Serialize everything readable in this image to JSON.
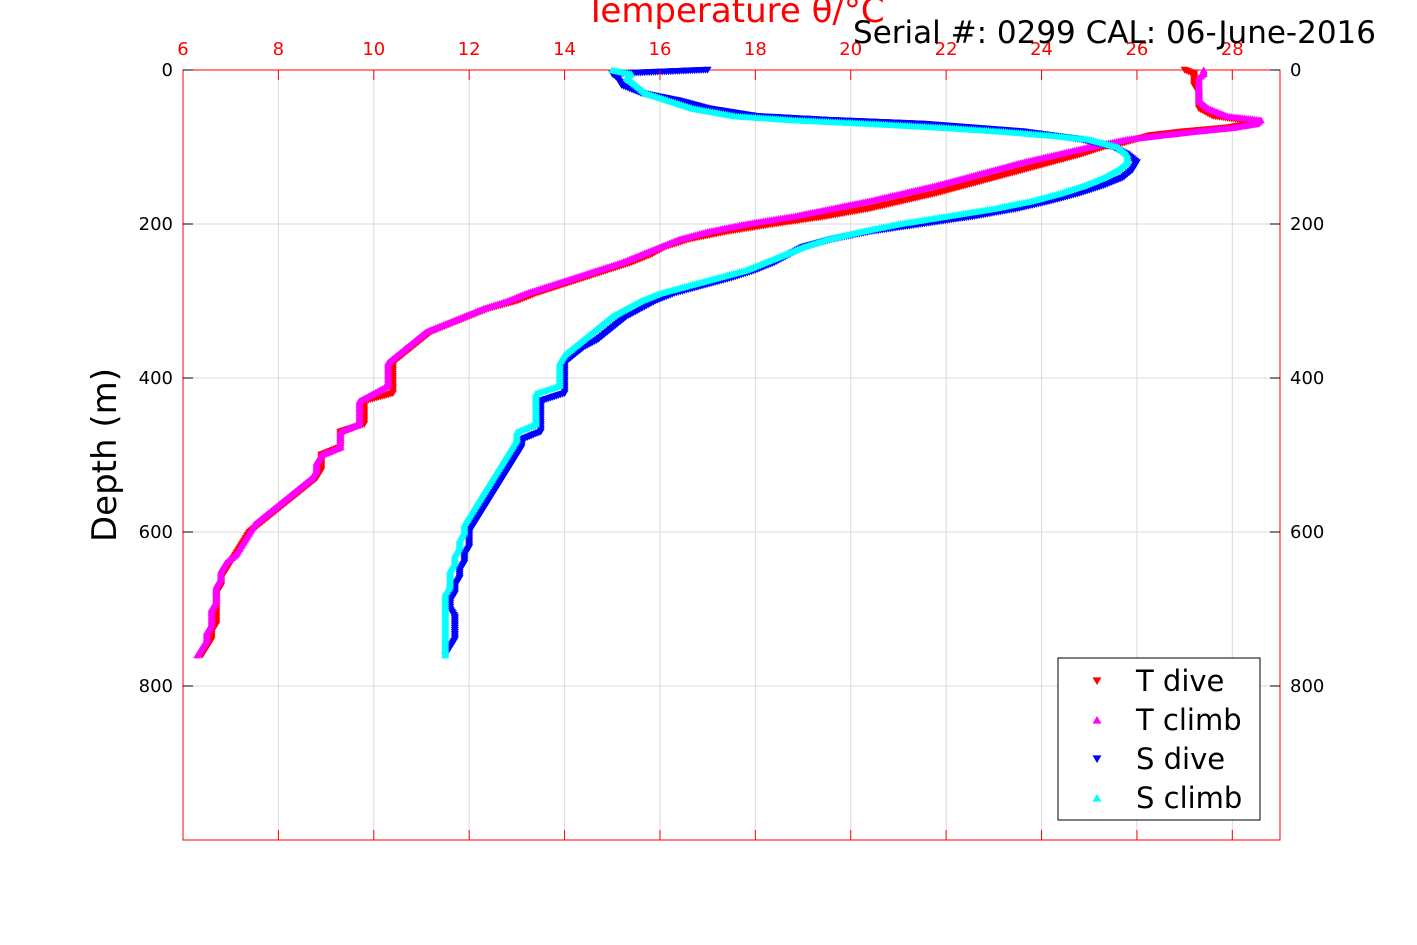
{
  "header": {
    "serial_text": "Serial #: 0299 CAL: 06-June-2016"
  },
  "chart_data": {
    "type": "scatter",
    "title": "Temperature θ/°C",
    "xlabel": "Temperature θ/°C",
    "ylabel": "Depth (m)",
    "xlim": [
      6,
      29
    ],
    "ylim": [
      0,
      1000
    ],
    "y_reversed": true,
    "x_axis_position": "top",
    "y_axis_sides": "both",
    "grid": true,
    "legend_position": "bottom-right",
    "xticks": [
      6,
      8,
      10,
      12,
      14,
      16,
      18,
      20,
      22,
      24,
      26,
      28
    ],
    "yticks": [
      0,
      200,
      400,
      600,
      800
    ],
    "colors": {
      "axis": "#ff0000",
      "grid": "#d9d9d9",
      "t_dive": "#ff0000",
      "t_climb": "#ff00ff",
      "s_dive": "#0000ff",
      "s_climb": "#00ffff"
    },
    "series": [
      {
        "name": "T dive",
        "marker": "triangle-down",
        "color": "#ff0000",
        "depth": [
          0,
          5,
          10,
          20,
          30,
          40,
          50,
          60,
          65,
          70,
          75,
          80,
          85,
          90,
          95,
          100,
          110,
          120,
          130,
          140,
          150,
          160,
          170,
          180,
          190,
          200,
          210,
          220,
          230,
          240,
          250,
          260,
          270,
          280,
          290,
          300,
          310,
          320,
          330,
          340,
          350,
          360,
          370,
          380,
          390,
          400,
          410,
          420,
          430,
          440,
          450,
          460,
          470,
          480,
          490,
          500,
          510,
          520,
          530,
          540,
          550,
          560,
          570,
          580,
          590,
          600,
          610,
          620,
          630,
          640,
          650,
          660,
          670,
          680,
          690,
          700,
          710,
          720,
          730,
          740,
          750,
          760
        ],
        "temperature": [
          27.0,
          27.2,
          27.2,
          27.2,
          27.3,
          27.3,
          27.3,
          27.6,
          28.2,
          28.4,
          27.9,
          27.0,
          26.3,
          26.0,
          25.7,
          25.3,
          24.8,
          24.2,
          23.6,
          23.0,
          22.4,
          21.8,
          21.1,
          20.4,
          19.5,
          18.4,
          17.4,
          16.6,
          16.1,
          15.8,
          15.4,
          14.9,
          14.4,
          13.9,
          13.4,
          13.0,
          12.4,
          12.0,
          11.6,
          11.2,
          11.0,
          10.8,
          10.6,
          10.4,
          10.4,
          10.4,
          10.4,
          10.4,
          9.8,
          9.8,
          9.8,
          9.8,
          9.3,
          9.3,
          9.3,
          8.9,
          8.9,
          8.9,
          8.8,
          8.6,
          8.4,
          8.2,
          8.0,
          7.8,
          7.6,
          7.4,
          7.3,
          7.2,
          7.1,
          7.0,
          6.9,
          6.8,
          6.8,
          6.7,
          6.7,
          6.7,
          6.7,
          6.7,
          6.6,
          6.6,
          6.5,
          6.4
        ]
      },
      {
        "name": "T climb",
        "marker": "triangle-up",
        "color": "#ff00ff",
        "depth": [
          0,
          5,
          10,
          20,
          30,
          40,
          50,
          60,
          65,
          70,
          75,
          80,
          85,
          90,
          95,
          100,
          110,
          120,
          130,
          140,
          150,
          160,
          170,
          180,
          190,
          200,
          210,
          220,
          230,
          240,
          250,
          260,
          270,
          280,
          290,
          300,
          310,
          320,
          330,
          340,
          350,
          360,
          370,
          380,
          390,
          400,
          410,
          420,
          430,
          440,
          450,
          460,
          470,
          480,
          490,
          500,
          510,
          520,
          530,
          540,
          550,
          560,
          570,
          580,
          590,
          600,
          610,
          620,
          630,
          640,
          650,
          660,
          670,
          680,
          690,
          700,
          710,
          720,
          730,
          740,
          750,
          760
        ],
        "temperature": [
          27.4,
          27.4,
          27.3,
          27.3,
          27.3,
          27.3,
          27.5,
          27.9,
          28.6,
          28.5,
          28.0,
          27.2,
          26.5,
          25.8,
          25.4,
          25.0,
          24.3,
          23.6,
          23.0,
          22.4,
          21.8,
          21.1,
          20.4,
          19.6,
          18.8,
          17.8,
          17.0,
          16.4,
          16.0,
          15.6,
          15.2,
          14.7,
          14.2,
          13.7,
          13.2,
          12.8,
          12.3,
          11.9,
          11.5,
          11.1,
          10.9,
          10.7,
          10.5,
          10.3,
          10.3,
          10.3,
          10.3,
          10.0,
          9.7,
          9.7,
          9.7,
          9.7,
          9.3,
          9.3,
          9.3,
          8.9,
          8.8,
          8.8,
          8.7,
          8.5,
          8.3,
          8.1,
          7.9,
          7.7,
          7.5,
          7.4,
          7.3,
          7.2,
          7.1,
          6.9,
          6.8,
          6.8,
          6.7,
          6.7,
          6.7,
          6.6,
          6.6,
          6.6,
          6.5,
          6.5,
          6.4,
          6.3
        ]
      },
      {
        "name": "S dive",
        "marker": "triangle-down",
        "color": "#0000ff",
        "depth": [
          0,
          5,
          10,
          20,
          30,
          35,
          40,
          50,
          60,
          65,
          70,
          80,
          90,
          100,
          110,
          120,
          130,
          140,
          150,
          160,
          170,
          180,
          190,
          200,
          210,
          220,
          230,
          240,
          250,
          260,
          270,
          280,
          290,
          300,
          310,
          320,
          330,
          340,
          350,
          360,
          370,
          380,
          390,
          400,
          410,
          420,
          430,
          440,
          450,
          460,
          470,
          480,
          490,
          500,
          510,
          520,
          530,
          540,
          550,
          560,
          570,
          580,
          590,
          600,
          610,
          620,
          630,
          640,
          650,
          660,
          670,
          680,
          690,
          700,
          710,
          720,
          730,
          740,
          750,
          760
        ],
        "temperature": [
          17.0,
          15.0,
          15.1,
          15.2,
          15.6,
          16.0,
          16.4,
          17.0,
          18.0,
          19.5,
          21.5,
          23.6,
          24.8,
          25.5,
          25.8,
          26.0,
          25.9,
          25.7,
          25.3,
          24.8,
          24.2,
          23.5,
          22.6,
          21.5,
          20.4,
          19.6,
          19.0,
          18.7,
          18.4,
          18.0,
          17.5,
          16.9,
          16.3,
          15.9,
          15.6,
          15.3,
          15.1,
          14.9,
          14.7,
          14.4,
          14.2,
          14.0,
          14.0,
          14.0,
          14.0,
          14.0,
          13.5,
          13.5,
          13.5,
          13.5,
          13.5,
          13.1,
          13.1,
          13.0,
          12.9,
          12.8,
          12.7,
          12.6,
          12.5,
          12.4,
          12.3,
          12.2,
          12.1,
          12.0,
          12.0,
          12.0,
          11.9,
          11.9,
          11.8,
          11.8,
          11.7,
          11.7,
          11.6,
          11.6,
          11.7,
          11.7,
          11.7,
          11.7,
          11.6,
          11.5
        ]
      },
      {
        "name": "S climb",
        "marker": "triangle-up",
        "color": "#00ffff",
        "depth": [
          0,
          5,
          10,
          20,
          30,
          40,
          50,
          60,
          65,
          70,
          75,
          80,
          85,
          90,
          100,
          110,
          120,
          130,
          140,
          150,
          160,
          170,
          180,
          190,
          200,
          210,
          220,
          230,
          240,
          250,
          260,
          270,
          280,
          290,
          300,
          310,
          320,
          330,
          340,
          350,
          360,
          370,
          380,
          390,
          400,
          410,
          420,
          430,
          440,
          450,
          460,
          470,
          480,
          490,
          500,
          510,
          520,
          530,
          540,
          550,
          560,
          570,
          580,
          590,
          600,
          610,
          620,
          630,
          640,
          650,
          660,
          670,
          680,
          690,
          700,
          710,
          720,
          730,
          740,
          750,
          760
        ],
        "temperature": [
          15.0,
          15.4,
          15.3,
          15.5,
          15.7,
          16.2,
          16.7,
          17.6,
          18.8,
          20.5,
          22.0,
          23.2,
          24.2,
          25.0,
          25.6,
          25.8,
          25.8,
          25.6,
          25.3,
          24.9,
          24.4,
          23.8,
          23.0,
          22.0,
          21.0,
          20.2,
          19.5,
          19.0,
          18.6,
          18.2,
          17.8,
          17.2,
          16.6,
          16.0,
          15.6,
          15.3,
          15.0,
          14.8,
          14.6,
          14.4,
          14.2,
          14.0,
          13.9,
          13.9,
          13.9,
          13.9,
          13.4,
          13.4,
          13.4,
          13.4,
          13.4,
          13.0,
          13.0,
          12.9,
          12.8,
          12.7,
          12.6,
          12.5,
          12.4,
          12.3,
          12.2,
          12.1,
          12.0,
          11.9,
          11.9,
          11.8,
          11.8,
          11.7,
          11.7,
          11.6,
          11.6,
          11.6,
          11.5,
          11.5,
          11.5,
          11.5,
          11.5,
          11.5,
          11.5,
          11.5,
          11.5
        ]
      }
    ]
  }
}
